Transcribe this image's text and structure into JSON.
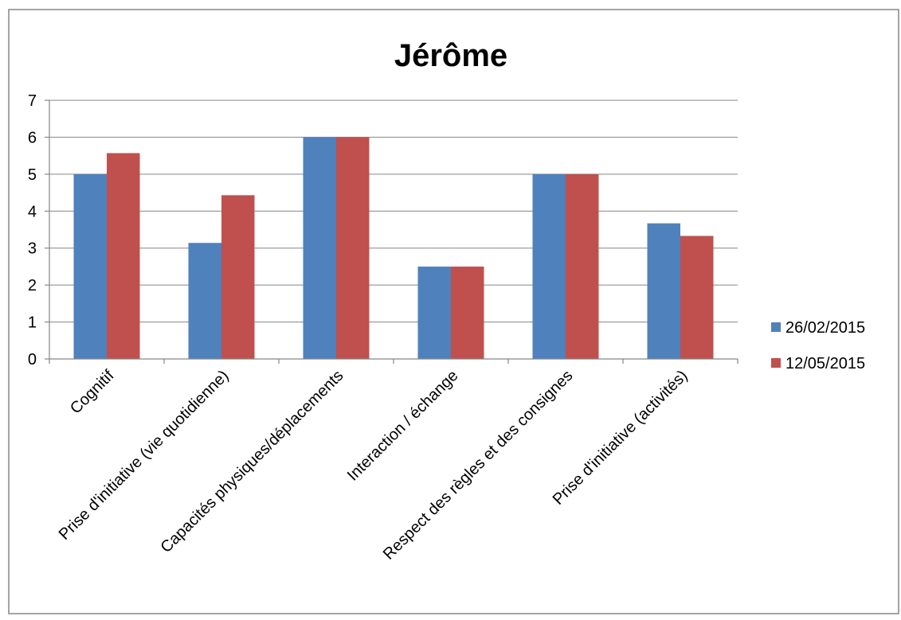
{
  "chart_data": {
    "type": "bar",
    "title": "Jérôme",
    "xlabel": "",
    "ylabel": "",
    "categories": [
      "Cognitif",
      "Prise d'initiative (vie quotidienne)",
      "Capacités physiques/déplacements",
      "Interaction / échange",
      "Respect des règles et des consignes",
      "Prise d'initiative (activités)"
    ],
    "series": [
      {
        "name": "26/02/2015",
        "color": "#4F81BD",
        "values": [
          5,
          3.14,
          6,
          2.5,
          5,
          3.67
        ]
      },
      {
        "name": "12/05/2015",
        "color": "#C0504D",
        "values": [
          5.57,
          4.43,
          6,
          2.5,
          5,
          3.33
        ]
      }
    ],
    "ylim": [
      0,
      7
    ],
    "yticks": [
      "0",
      "1",
      "2",
      "3",
      "4",
      "5",
      "6",
      "7"
    ],
    "grid": true,
    "legend_position": "right"
  }
}
